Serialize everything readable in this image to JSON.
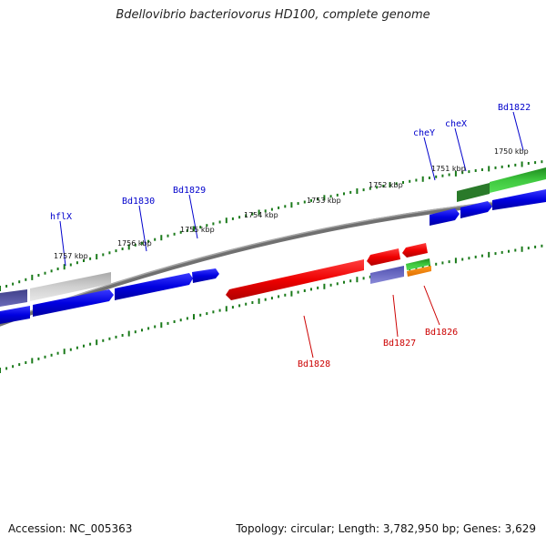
{
  "title": "Bdellovibrio bacteriovorus HD100, complete genome",
  "footer": {
    "accession": "Accession: NC_005363",
    "summary": "Topology: circular; Length: 3,782,950 bp; Genes: 3,629"
  },
  "kbp_labels": [
    "1757 kbp",
    "1756 kbp",
    "1755 kbp",
    "1754 kbp",
    "1753 kbp",
    "1752 kbp",
    "1751 kbp",
    "1750 kbp"
  ],
  "gene_labels_top": [
    "hflX",
    "Bd1830",
    "Bd1829",
    "cheY",
    "cheX",
    "Bd1822"
  ],
  "gene_labels_bottom": [
    "Bd1828",
    "Bd1827",
    "Bd1826"
  ],
  "colors": {
    "label_top": "#0000cc",
    "label_bottom": "#cc0000",
    "tick": "#1a7a1a",
    "backbone": "#808080"
  }
}
